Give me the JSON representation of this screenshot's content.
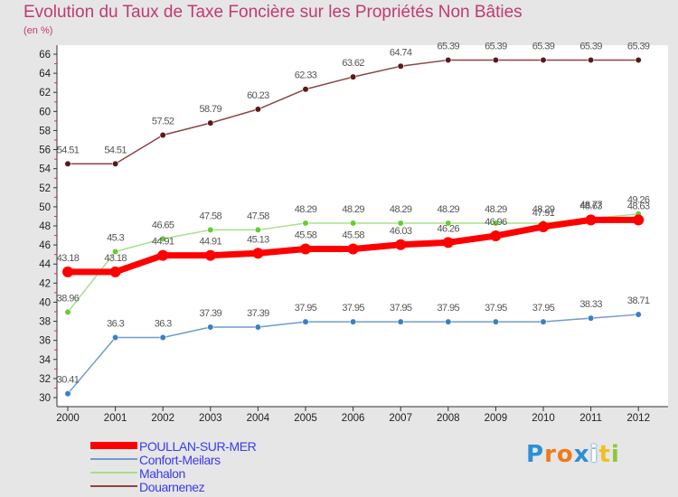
{
  "chart_data": {
    "type": "line",
    "title": "Evolution du Taux de Taxe Foncière sur les Propriétés Non Bâties",
    "subtitle": "(en %)",
    "x": [
      "2000",
      "2001",
      "2002",
      "2003",
      "2004",
      "2005",
      "2006",
      "2007",
      "2008",
      "2009",
      "2010",
      "2011",
      "2012"
    ],
    "ylim": [
      30,
      66
    ],
    "yticks": [
      30,
      32,
      34,
      36,
      38,
      40,
      42,
      44,
      46,
      48,
      50,
      52,
      54,
      56,
      58,
      60,
      62,
      64,
      66
    ],
    "grid": false,
    "legend_position": "bottom-left",
    "series": [
      {
        "name": "POULLAN-SUR-MER",
        "color": "#ff0000",
        "line_width": 7,
        "marker_color": "#ff0000",
        "marker_radius": 6,
        "values": [
          43.18,
          43.18,
          44.91,
          44.91,
          45.13,
          45.58,
          45.58,
          46.03,
          46.26,
          46.96,
          47.91,
          48.63,
          48.63
        ],
        "labels": [
          "43.18",
          "43.18",
          "44.91",
          "44.91",
          "45.13",
          "45.58",
          "45.58",
          "46.03",
          "46.26",
          "46.96",
          "47.91",
          "48.63",
          "48.63"
        ]
      },
      {
        "name": "Confort-Meilars",
        "color": "#6f9ccc",
        "line_width": 1.5,
        "marker_color": "#3a7fc4",
        "marker_radius": 3.3,
        "values": [
          30.41,
          36.3,
          36.3,
          37.39,
          37.39,
          37.95,
          37.95,
          37.95,
          37.95,
          37.95,
          37.95,
          38.33,
          38.71
        ],
        "labels": [
          "30.41",
          "36.3",
          "36.3",
          "37.39",
          "37.39",
          "37.95",
          "37.95",
          "37.95",
          "37.95",
          "37.95",
          "37.95",
          "38.33",
          "38.71"
        ]
      },
      {
        "name": "Mahalon",
        "color": "#a8e08a",
        "line_width": 1.5,
        "marker_color": "#66cc33",
        "marker_radius": 3.3,
        "values": [
          38.96,
          45.3,
          46.65,
          47.58,
          47.58,
          48.29,
          48.29,
          48.29,
          48.29,
          48.29,
          48.29,
          48.77,
          49.26
        ],
        "labels": [
          "38.96",
          "45.3",
          "46.65",
          "47.58",
          "47.58",
          "48.29",
          "48.29",
          "48.29",
          "48.29",
          "48.29",
          "48.29",
          "48.77",
          "49.26"
        ]
      },
      {
        "name": "Douarnenez",
        "color": "#8a4444",
        "line_width": 1.5,
        "marker_color": "#5a1a1a",
        "marker_radius": 3.3,
        "values": [
          54.51,
          54.51,
          57.52,
          58.79,
          60.23,
          62.33,
          63.62,
          64.74,
          65.39,
          65.39,
          65.39,
          65.39,
          65.39
        ],
        "labels": [
          "54.51",
          "54.51",
          "57.52",
          "58.79",
          "60.23",
          "62.33",
          "63.62",
          "64.74",
          "65.39",
          "65.39",
          "65.39",
          "65.39",
          "65.39"
        ]
      }
    ]
  },
  "logo": {
    "letters": [
      "P",
      "r",
      "o",
      "x",
      "i",
      "t",
      "i"
    ],
    "colors": [
      "#2b8fd6",
      "#f07a1a",
      "#f07a1a",
      "#2b8fd6",
      "#ffffff",
      "#f0c020",
      "#8dc63f"
    ]
  }
}
